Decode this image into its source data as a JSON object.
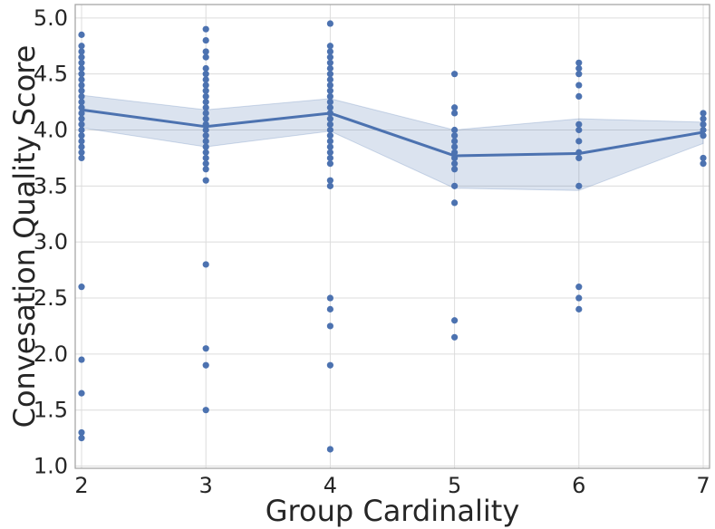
{
  "chart_data": {
    "type": "scatter",
    "title": "",
    "xlabel": "Group Cardinality",
    "ylabel": "Convesation Quality Score",
    "xlim": [
      2,
      7
    ],
    "ylim": [
      0.98,
      5.12
    ],
    "x_ticks": [
      2,
      3,
      4,
      5,
      6,
      7
    ],
    "x_tick_labels": [
      "2",
      "3",
      "4",
      "5",
      "6",
      "7"
    ],
    "y_ticks": [
      1.0,
      1.5,
      2.0,
      2.5,
      3.0,
      3.5,
      4.0,
      4.5,
      5.0
    ],
    "y_tick_labels": [
      "1.0",
      "1.5",
      "2.0",
      "2.5",
      "3.0",
      "3.5",
      "4.0",
      "4.5",
      "5.0"
    ],
    "grid": true,
    "colors": {
      "point": "#4c72b0",
      "line": "#4c72b0",
      "band": "#4c72b0",
      "grid": "#dcdcdc",
      "frame": "#a0a0a0"
    },
    "series": [
      {
        "name": "scores",
        "kind": "scatter",
        "points": [
          [
            2,
            4.85
          ],
          [
            2,
            4.75
          ],
          [
            2,
            4.7
          ],
          [
            2,
            4.65
          ],
          [
            2,
            4.6
          ],
          [
            2,
            4.55
          ],
          [
            2,
            4.5
          ],
          [
            2,
            4.45
          ],
          [
            2,
            4.4
          ],
          [
            2,
            4.35
          ],
          [
            2,
            4.3
          ],
          [
            2,
            4.25
          ],
          [
            2,
            4.2
          ],
          [
            2,
            4.15
          ],
          [
            2,
            4.1
          ],
          [
            2,
            4.05
          ],
          [
            2,
            4.0
          ],
          [
            2,
            3.95
          ],
          [
            2,
            3.9
          ],
          [
            2,
            3.85
          ],
          [
            2,
            3.8
          ],
          [
            2,
            3.75
          ],
          [
            2,
            2.6
          ],
          [
            2,
            1.95
          ],
          [
            2,
            1.65
          ],
          [
            2,
            1.3
          ],
          [
            2,
            1.25
          ],
          [
            3,
            4.9
          ],
          [
            3,
            4.8
          ],
          [
            3,
            4.7
          ],
          [
            3,
            4.65
          ],
          [
            3,
            4.55
          ],
          [
            3,
            4.5
          ],
          [
            3,
            4.45
          ],
          [
            3,
            4.4
          ],
          [
            3,
            4.35
          ],
          [
            3,
            4.3
          ],
          [
            3,
            4.25
          ],
          [
            3,
            4.2
          ],
          [
            3,
            4.15
          ],
          [
            3,
            4.1
          ],
          [
            3,
            4.05
          ],
          [
            3,
            4.0
          ],
          [
            3,
            3.95
          ],
          [
            3,
            3.9
          ],
          [
            3,
            3.85
          ],
          [
            3,
            3.8
          ],
          [
            3,
            3.75
          ],
          [
            3,
            3.7
          ],
          [
            3,
            3.65
          ],
          [
            3,
            3.55
          ],
          [
            3,
            2.8
          ],
          [
            3,
            2.05
          ],
          [
            3,
            1.9
          ],
          [
            3,
            1.5
          ],
          [
            4,
            4.95
          ],
          [
            4,
            4.75
          ],
          [
            4,
            4.7
          ],
          [
            4,
            4.65
          ],
          [
            4,
            4.6
          ],
          [
            4,
            4.55
          ],
          [
            4,
            4.5
          ],
          [
            4,
            4.45
          ],
          [
            4,
            4.4
          ],
          [
            4,
            4.35
          ],
          [
            4,
            4.3
          ],
          [
            4,
            4.25
          ],
          [
            4,
            4.2
          ],
          [
            4,
            4.15
          ],
          [
            4,
            4.1
          ],
          [
            4,
            4.05
          ],
          [
            4,
            4.0
          ],
          [
            4,
            3.95
          ],
          [
            4,
            3.9
          ],
          [
            4,
            3.85
          ],
          [
            4,
            3.8
          ],
          [
            4,
            3.75
          ],
          [
            4,
            3.7
          ],
          [
            4,
            3.55
          ],
          [
            4,
            3.5
          ],
          [
            4,
            2.5
          ],
          [
            4,
            2.4
          ],
          [
            4,
            2.25
          ],
          [
            4,
            1.9
          ],
          [
            4,
            1.15
          ],
          [
            5,
            4.5
          ],
          [
            5,
            4.2
          ],
          [
            5,
            4.15
          ],
          [
            5,
            4.0
          ],
          [
            5,
            3.95
          ],
          [
            5,
            3.9
          ],
          [
            5,
            3.85
          ],
          [
            5,
            3.8
          ],
          [
            5,
            3.75
          ],
          [
            5,
            3.7
          ],
          [
            5,
            3.65
          ],
          [
            5,
            3.5
          ],
          [
            5,
            3.35
          ],
          [
            5,
            2.3
          ],
          [
            5,
            2.15
          ],
          [
            6,
            4.6
          ],
          [
            6,
            4.55
          ],
          [
            6,
            4.5
          ],
          [
            6,
            4.4
          ],
          [
            6,
            4.3
          ],
          [
            6,
            4.05
          ],
          [
            6,
            4.0
          ],
          [
            6,
            3.9
          ],
          [
            6,
            3.8
          ],
          [
            6,
            3.75
          ],
          [
            6,
            3.5
          ],
          [
            6,
            2.6
          ],
          [
            6,
            2.5
          ],
          [
            6,
            2.4
          ],
          [
            7,
            4.15
          ],
          [
            7,
            4.1
          ],
          [
            7,
            4.05
          ],
          [
            7,
            4.0
          ],
          [
            7,
            3.95
          ],
          [
            7,
            3.75
          ],
          [
            7,
            3.7
          ]
        ]
      },
      {
        "name": "mean",
        "kind": "line",
        "x": [
          2,
          3,
          4,
          5,
          6,
          7
        ],
        "y": [
          4.18,
          4.03,
          4.15,
          3.77,
          3.79,
          3.98
        ],
        "ci_low": [
          4.02,
          3.85,
          3.99,
          3.48,
          3.46,
          3.88
        ],
        "ci_high": [
          4.31,
          4.18,
          4.28,
          4.0,
          4.1,
          4.07
        ]
      }
    ]
  }
}
